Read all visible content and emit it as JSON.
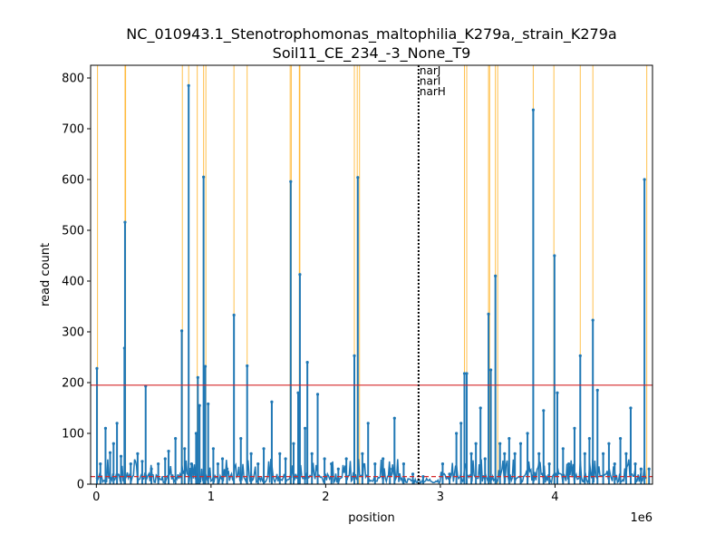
{
  "chart_data": {
    "type": "line",
    "title_line1": "NC_010943.1_Stenotrophomonas_maltophilia_K279a,_strain_K279a",
    "title_line2": "Soil11_CE_234_-3_None_T9",
    "xlabel": "position",
    "ylabel": "read count",
    "x_scale_label": "1e6",
    "xlim": [
      -50000,
      4850000
    ],
    "ylim": [
      0,
      825
    ],
    "x_ticks": [
      0,
      1000000,
      2000000,
      3000000,
      4000000
    ],
    "x_tick_labels": [
      "0",
      "1",
      "2",
      "3",
      "4"
    ],
    "y_ticks": [
      0,
      100,
      200,
      300,
      400,
      500,
      600,
      700,
      800
    ],
    "y_tick_labels": [
      "0",
      "100",
      "200",
      "300",
      "400",
      "500",
      "600",
      "700",
      "800"
    ],
    "threshold_high": 195,
    "threshold_low": 15,
    "marker_position": 2810000,
    "marker_labels": [
      "narJ",
      "narI",
      "narH"
    ],
    "colors": {
      "series": "#1f77b4",
      "highlight": "#ffa500",
      "threshold": "#d62728",
      "marker": "#000000"
    },
    "highlight_positions": [
      10000,
      250000,
      255000,
      750000,
      805000,
      880000,
      935000,
      955000,
      1200000,
      1315000,
      1690000,
      1700000,
      1770000,
      1775000,
      2250000,
      2275000,
      2295000,
      3210000,
      3230000,
      3420000,
      3430000,
      3480000,
      3500000,
      3810000,
      3990000,
      4220000,
      4330000,
      4800000
    ],
    "peaks": [
      {
        "x": 5000,
        "y": 228
      },
      {
        "x": 35000,
        "y": 40
      },
      {
        "x": 80000,
        "y": 110
      },
      {
        "x": 120000,
        "y": 62
      },
      {
        "x": 150000,
        "y": 80
      },
      {
        "x": 180000,
        "y": 120
      },
      {
        "x": 215000,
        "y": 55
      },
      {
        "x": 245000,
        "y": 268
      },
      {
        "x": 250000,
        "y": 516
      },
      {
        "x": 300000,
        "y": 40
      },
      {
        "x": 360000,
        "y": 60
      },
      {
        "x": 400000,
        "y": 45
      },
      {
        "x": 430000,
        "y": 193
      },
      {
        "x": 480000,
        "y": 30
      },
      {
        "x": 540000,
        "y": 40
      },
      {
        "x": 600000,
        "y": 50
      },
      {
        "x": 630000,
        "y": 65
      },
      {
        "x": 690000,
        "y": 90
      },
      {
        "x": 745000,
        "y": 302
      },
      {
        "x": 770000,
        "y": 70
      },
      {
        "x": 805000,
        "y": 785
      },
      {
        "x": 830000,
        "y": 40
      },
      {
        "x": 870000,
        "y": 100
      },
      {
        "x": 885000,
        "y": 210
      },
      {
        "x": 900000,
        "y": 155
      },
      {
        "x": 935000,
        "y": 605
      },
      {
        "x": 950000,
        "y": 232
      },
      {
        "x": 975000,
        "y": 158
      },
      {
        "x": 1020000,
        "y": 70
      },
      {
        "x": 1060000,
        "y": 40
      },
      {
        "x": 1100000,
        "y": 50
      },
      {
        "x": 1140000,
        "y": 30
      },
      {
        "x": 1200000,
        "y": 333
      },
      {
        "x": 1260000,
        "y": 90
      },
      {
        "x": 1315000,
        "y": 233
      },
      {
        "x": 1350000,
        "y": 60
      },
      {
        "x": 1410000,
        "y": 40
      },
      {
        "x": 1460000,
        "y": 70
      },
      {
        "x": 1530000,
        "y": 162
      },
      {
        "x": 1600000,
        "y": 60
      },
      {
        "x": 1650000,
        "y": 50
      },
      {
        "x": 1695000,
        "y": 596
      },
      {
        "x": 1720000,
        "y": 80
      },
      {
        "x": 1760000,
        "y": 180
      },
      {
        "x": 1775000,
        "y": 413
      },
      {
        "x": 1820000,
        "y": 110
      },
      {
        "x": 1840000,
        "y": 240
      },
      {
        "x": 1880000,
        "y": 60
      },
      {
        "x": 1930000,
        "y": 177
      },
      {
        "x": 1990000,
        "y": 50
      },
      {
        "x": 2050000,
        "y": 40
      },
      {
        "x": 2110000,
        "y": 30
      },
      {
        "x": 2180000,
        "y": 50
      },
      {
        "x": 2250000,
        "y": 253
      },
      {
        "x": 2280000,
        "y": 604
      },
      {
        "x": 2320000,
        "y": 60
      },
      {
        "x": 2370000,
        "y": 120
      },
      {
        "x": 2430000,
        "y": 40
      },
      {
        "x": 2500000,
        "y": 50
      },
      {
        "x": 2560000,
        "y": 30
      },
      {
        "x": 2600000,
        "y": 130
      },
      {
        "x": 2680000,
        "y": 40
      },
      {
        "x": 2760000,
        "y": 20
      },
      {
        "x": 2850000,
        "y": 15
      },
      {
        "x": 3020000,
        "y": 40
      },
      {
        "x": 3080000,
        "y": 20
      },
      {
        "x": 3140000,
        "y": 100
      },
      {
        "x": 3180000,
        "y": 120
      },
      {
        "x": 3210000,
        "y": 218
      },
      {
        "x": 3230000,
        "y": 218
      },
      {
        "x": 3270000,
        "y": 60
      },
      {
        "x": 3310000,
        "y": 80
      },
      {
        "x": 3350000,
        "y": 150
      },
      {
        "x": 3390000,
        "y": 50
      },
      {
        "x": 3420000,
        "y": 335
      },
      {
        "x": 3440000,
        "y": 225
      },
      {
        "x": 3480000,
        "y": 410
      },
      {
        "x": 3520000,
        "y": 80
      },
      {
        "x": 3560000,
        "y": 60
      },
      {
        "x": 3600000,
        "y": 90
      },
      {
        "x": 3650000,
        "y": 60
      },
      {
        "x": 3700000,
        "y": 80
      },
      {
        "x": 3760000,
        "y": 100
      },
      {
        "x": 3810000,
        "y": 737
      },
      {
        "x": 3860000,
        "y": 60
      },
      {
        "x": 3900000,
        "y": 145
      },
      {
        "x": 3950000,
        "y": 40
      },
      {
        "x": 3995000,
        "y": 450
      },
      {
        "x": 4020000,
        "y": 180
      },
      {
        "x": 4070000,
        "y": 70
      },
      {
        "x": 4120000,
        "y": 40
      },
      {
        "x": 4170000,
        "y": 110
      },
      {
        "x": 4220000,
        "y": 253
      },
      {
        "x": 4260000,
        "y": 60
      },
      {
        "x": 4300000,
        "y": 90
      },
      {
        "x": 4330000,
        "y": 323
      },
      {
        "x": 4370000,
        "y": 185
      },
      {
        "x": 4420000,
        "y": 60
      },
      {
        "x": 4470000,
        "y": 80
      },
      {
        "x": 4520000,
        "y": 40
      },
      {
        "x": 4570000,
        "y": 90
      },
      {
        "x": 4620000,
        "y": 60
      },
      {
        "x": 4660000,
        "y": 150
      },
      {
        "x": 4700000,
        "y": 40
      },
      {
        "x": 4750000,
        "y": 30
      },
      {
        "x": 4780000,
        "y": 600
      },
      {
        "x": 4820000,
        "y": 30
      }
    ]
  }
}
